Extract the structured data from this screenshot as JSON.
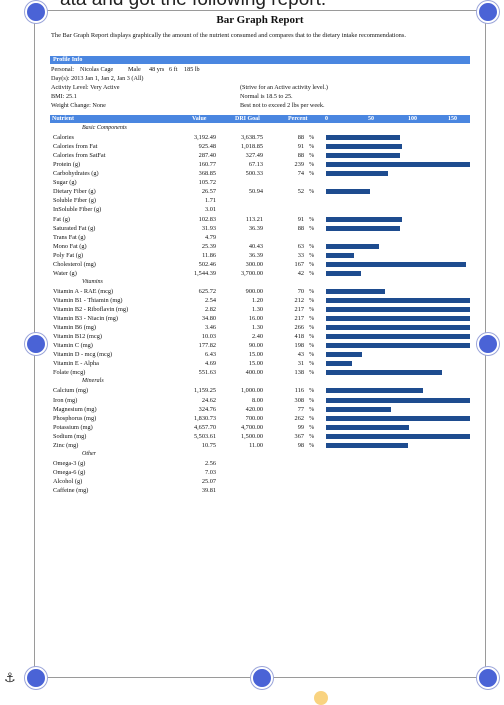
{
  "top_text": "ata and got the following report:",
  "title": "Bar Graph Report",
  "description": "The Bar Graph Report displays graphically the amount of the nutrient consumed and compares that to the dietary intake recommendations.",
  "profile": {
    "header": "Profile Info",
    "personal_label": "Personal:",
    "name": "Nicolas Cage",
    "sex": "Male",
    "age": "48 yrs",
    "height": "6 ft",
    "weight": "185 lb",
    "days": "Day(s):  2013 Jan 1, Jan 2, Jan 3 (All)",
    "activity": "Activity Level: Very Active",
    "activity_note": "(Strive for an Active activity level.)",
    "bmi": "BMI: 25.1",
    "bmi_note": "Normal is 18.5 to 25.",
    "weight_change": "Weight Change: None",
    "weight_note": "Best not to exceed 2 lbs per week."
  },
  "table_header": {
    "nutrient": "Nutrient",
    "value": "Value",
    "goal": "DRI Goal",
    "percent": "Percent",
    "scale": [
      "0",
      "50",
      "100",
      "150"
    ]
  },
  "sections": [
    {
      "name": "Basic Components",
      "rows": [
        {
          "n": "Calories",
          "v": "3,192.49",
          "g": "3,638.75",
          "p": "88",
          "pct": 88
        },
        {
          "n": "Calories from Fat",
          "v": "925.48",
          "g": "1,018.85",
          "p": "91",
          "pct": 91
        },
        {
          "n": "Calories from SatFat",
          "v": "287.40",
          "g": "327.49",
          "p": "88",
          "pct": 88
        },
        {
          "n": "Protein (g)",
          "v": "160.77",
          "g": "67.13",
          "p": "239",
          "pct": 239
        },
        {
          "n": "Carbohydrates (g)",
          "v": "368.85",
          "g": "500.33",
          "p": "74",
          "pct": 74
        },
        {
          "n": "Sugar (g)",
          "v": "105.72",
          "g": "",
          "p": "",
          "pct": 0
        },
        {
          "n": "Dietary Fiber (g)",
          "v": "26.57",
          "g": "50.94",
          "p": "52",
          "pct": 52
        },
        {
          "n": "Soluble Fiber (g)",
          "v": "1.71",
          "g": "",
          "p": "",
          "pct": 0
        },
        {
          "n": "InSoluble Fiber (g)",
          "v": "3.01",
          "g": "",
          "p": "",
          "pct": 0
        },
        {
          "n": "Fat (g)",
          "v": "102.83",
          "g": "113.21",
          "p": "91",
          "pct": 91
        },
        {
          "n": "Saturated Fat (g)",
          "v": "31.93",
          "g": "36.39",
          "p": "88",
          "pct": 88
        },
        {
          "n": "Trans Fat (g)",
          "v": "4.79",
          "g": "",
          "p": "",
          "pct": 0
        },
        {
          "n": "Mono Fat (g)",
          "v": "25.39",
          "g": "40.43",
          "p": "63",
          "pct": 63
        },
        {
          "n": "Poly Fat (g)",
          "v": "11.86",
          "g": "36.39",
          "p": "33",
          "pct": 33
        },
        {
          "n": "Cholesterol (mg)",
          "v": "502.46",
          "g": "300.00",
          "p": "167",
          "pct": 167
        },
        {
          "n": "Water (g)",
          "v": "1,544.39",
          "g": "3,700.00",
          "p": "42",
          "pct": 42
        }
      ]
    },
    {
      "name": "Vitamins",
      "rows": [
        {
          "n": "Vitamin A - RAE (mcg)",
          "v": "625.72",
          "g": "900.00",
          "p": "70",
          "pct": 70
        },
        {
          "n": "Vitamin B1 - Thiamin (mg)",
          "v": "2.54",
          "g": "1.20",
          "p": "212",
          "pct": 212
        },
        {
          "n": "Vitamin B2 - Riboflavin (mg)",
          "v": "2.82",
          "g": "1.30",
          "p": "217",
          "pct": 217
        },
        {
          "n": "Vitamin B3 - Niacin (mg)",
          "v": "34.80",
          "g": "16.00",
          "p": "217",
          "pct": 217
        },
        {
          "n": "Vitamin B6 (mg)",
          "v": "3.46",
          "g": "1.30",
          "p": "266",
          "pct": 266
        },
        {
          "n": "Vitamin B12 (mcg)",
          "v": "10.03",
          "g": "2.40",
          "p": "418",
          "pct": 418
        },
        {
          "n": "Vitamin C (mg)",
          "v": "177.82",
          "g": "90.00",
          "p": "198",
          "pct": 198
        },
        {
          "n": "Vitamin D - mcg (mcg)",
          "v": "6.43",
          "g": "15.00",
          "p": "43",
          "pct": 43
        },
        {
          "n": "Vitamin E - Alpha",
          "v": "4.69",
          "g": "15.00",
          "p": "31",
          "pct": 31
        },
        {
          "n": "Folate (mcg)",
          "v": "551.63",
          "g": "400.00",
          "p": "138",
          "pct": 138
        }
      ]
    },
    {
      "name": "Minerals",
      "rows": [
        {
          "n": "Calcium (mg)",
          "v": "1,159.25",
          "g": "1,000.00",
          "p": "116",
          "pct": 116
        },
        {
          "n": "Iron (mg)",
          "v": "24.62",
          "g": "8.00",
          "p": "308",
          "pct": 308
        },
        {
          "n": "Magnesium (mg)",
          "v": "324.76",
          "g": "420.00",
          "p": "77",
          "pct": 77
        },
        {
          "n": "Phosphorus (mg)",
          "v": "1,830.73",
          "g": "700.00",
          "p": "262",
          "pct": 262
        },
        {
          "n": "Potassium (mg)",
          "v": "4,657.70",
          "g": "4,700.00",
          "p": "99",
          "pct": 99
        },
        {
          "n": "Sodium (mg)",
          "v": "5,503.61",
          "g": "1,500.00",
          "p": "367",
          "pct": 367
        },
        {
          "n": "Zinc (mg)",
          "v": "10.75",
          "g": "11.00",
          "p": "98",
          "pct": 98
        }
      ]
    },
    {
      "name": "Other",
      "rows": [
        {
          "n": "Omega-3 (g)",
          "v": "2.56",
          "g": "",
          "p": "",
          "pct": 0
        },
        {
          "n": "Omega-6 (g)",
          "v": "7.03",
          "g": "",
          "p": "",
          "pct": 0
        },
        {
          "n": "Alcohol (g)",
          "v": "25.07",
          "g": "",
          "p": "",
          "pct": 0
        },
        {
          "n": "Caffeine (mg)",
          "v": "39.81",
          "g": "",
          "p": "",
          "pct": 0
        }
      ]
    }
  ],
  "colors": {
    "header_blue": "#4a86e0",
    "bar_blue": "#1e4c8f",
    "handle": "#4a63d6"
  }
}
